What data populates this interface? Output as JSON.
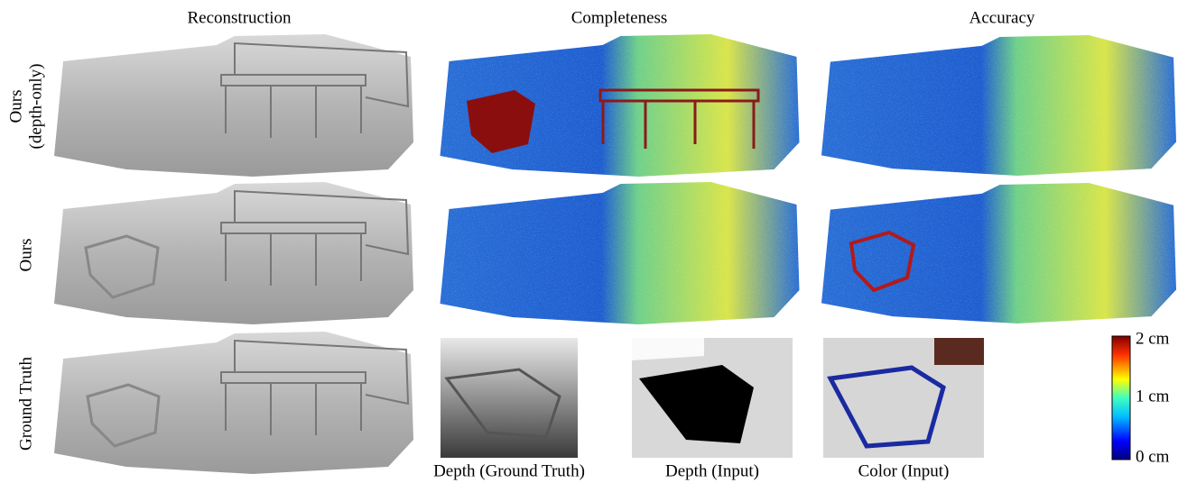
{
  "column_headers": [
    "Reconstruction",
    "Completeness",
    "Accuracy"
  ],
  "row_labels": [
    [
      "Ours",
      "(depth-only)"
    ],
    [
      "Ours"
    ],
    [
      "Ground Truth"
    ]
  ],
  "captions": [
    "Depth (Ground Truth)",
    "Depth (Input)",
    "Color (Input)"
  ],
  "colorbar": {
    "labels": [
      "2 cm",
      "1 cm",
      "0 cm"
    ]
  }
}
